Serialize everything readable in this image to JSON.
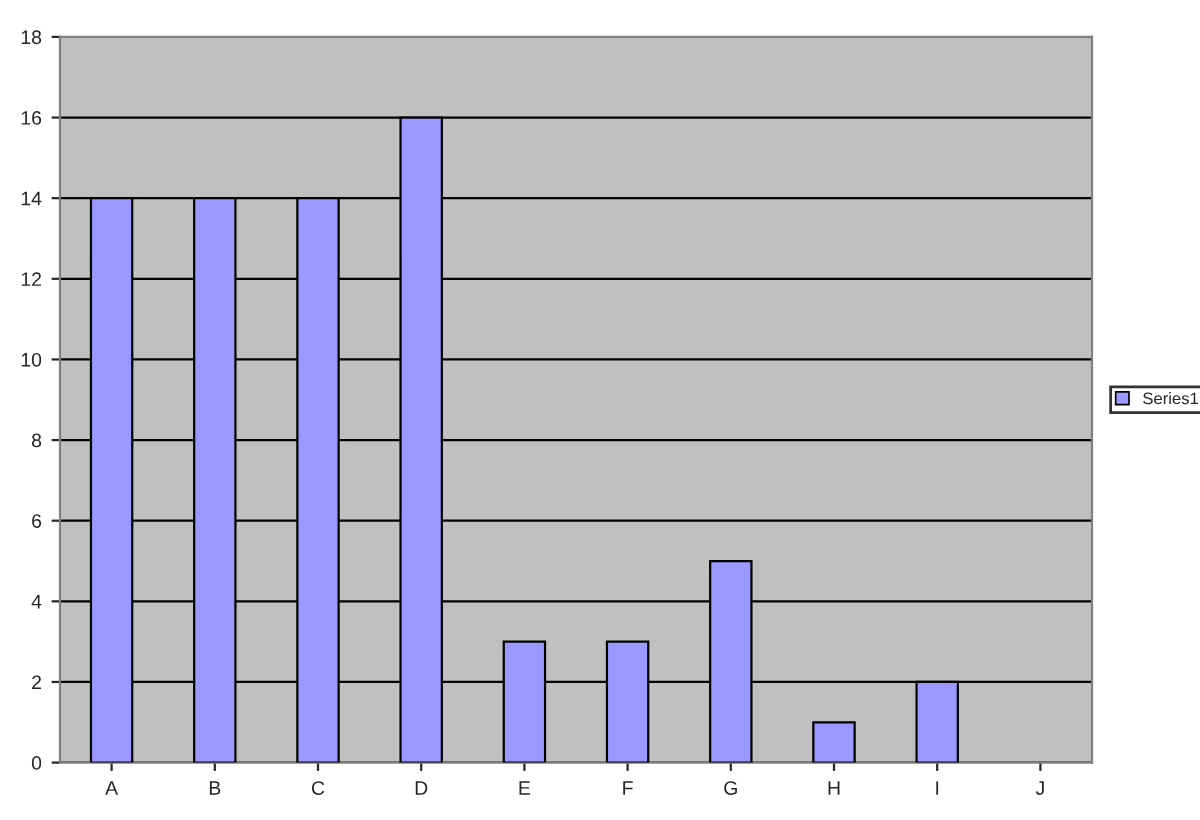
{
  "chart_data": {
    "type": "bar",
    "categories": [
      "A",
      "B",
      "C",
      "D",
      "E",
      "F",
      "G",
      "H",
      "I",
      "J"
    ],
    "series": [
      {
        "name": "Series1",
        "color": "#9999ff",
        "values": [
          14,
          14,
          14,
          16,
          3,
          3,
          5,
          1,
          2,
          0
        ]
      }
    ],
    "ylim": [
      0,
      18
    ],
    "yticks": [
      0,
      2,
      4,
      6,
      8,
      10,
      12,
      14,
      16,
      18
    ],
    "grid": "y",
    "legend": "right"
  }
}
